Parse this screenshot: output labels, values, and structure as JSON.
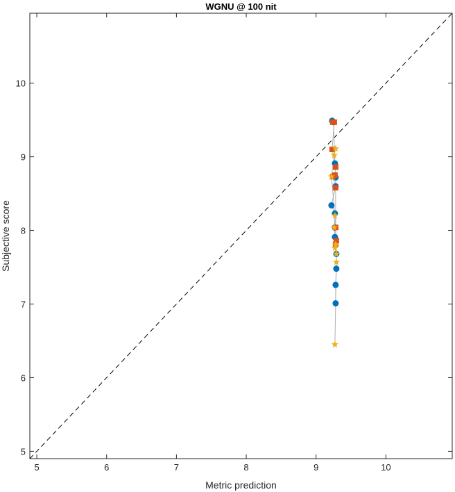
{
  "chart_data": {
    "type": "scatter",
    "title": "WGNU @ 100 nit",
    "xlabel": "Metric prediction",
    "ylabel": "Subjective score",
    "xlim": [
      4.9,
      10.95
    ],
    "ylim": [
      4.9,
      10.95
    ],
    "xticks": [
      5,
      6,
      7,
      8,
      9,
      10
    ],
    "yticks": [
      5,
      6,
      7,
      8,
      9,
      10
    ],
    "grid": false,
    "legend": "none",
    "diagonal": {
      "style": "dashed",
      "color": "#000000"
    },
    "connector_color": "#b0b0b0",
    "series": [
      {
        "marker": "circle",
        "color": "#0072BD",
        "points": [
          [
            9.23,
            9.49
          ],
          [
            9.25,
            9.47
          ],
          [
            9.27,
            8.91
          ],
          [
            9.28,
            8.72
          ],
          [
            9.28,
            8.6
          ],
          [
            9.22,
            8.34
          ],
          [
            9.27,
            8.23
          ],
          [
            9.27,
            8.04
          ],
          [
            9.27,
            7.91
          ],
          [
            9.29,
            7.68
          ],
          [
            9.29,
            7.48
          ],
          [
            9.28,
            7.26
          ],
          [
            9.28,
            7.01
          ]
        ]
      },
      {
        "marker": "square",
        "color": "#D95319",
        "points": [
          [
            9.24,
            9.47
          ],
          [
            9.26,
            9.47
          ],
          [
            9.23,
            9.1
          ],
          [
            9.28,
            8.86
          ],
          [
            9.27,
            8.75
          ],
          [
            9.24,
            8.73
          ],
          [
            9.28,
            8.58
          ],
          [
            9.28,
            8.04
          ],
          [
            9.29,
            7.86
          ],
          [
            9.28,
            7.81
          ]
        ]
      },
      {
        "marker": "star",
        "color": "#EDB120",
        "points": [
          [
            9.28,
            9.11
          ],
          [
            9.26,
            9.02
          ],
          [
            9.22,
            8.73
          ],
          [
            9.27,
            8.2
          ],
          [
            9.26,
            8.04
          ],
          [
            9.28,
            7.81
          ],
          [
            9.27,
            7.76
          ],
          [
            9.29,
            7.68
          ],
          [
            9.29,
            7.57
          ],
          [
            9.27,
            6.45
          ]
        ]
      }
    ]
  }
}
